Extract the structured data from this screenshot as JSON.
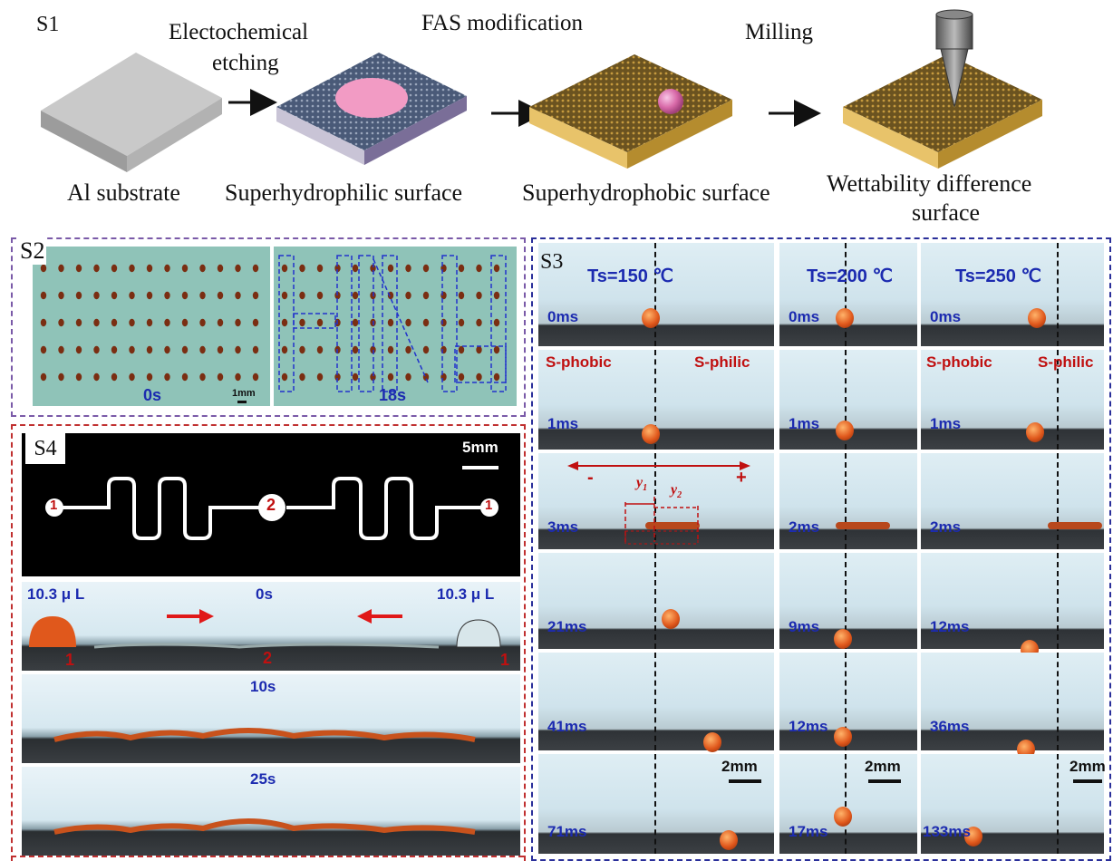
{
  "s1": {
    "tag": "S1",
    "step_electrochem_1": "Electochemical",
    "step_electrochem_2": "etching",
    "step_fas": "FAS modification",
    "step_milling": "Milling",
    "surf_al": "Al substrate",
    "surf_philic": "Superhydrophilic surface",
    "surf_phobic": "Superhydrophobic surface",
    "surf_wet_1": "Wettability difference",
    "surf_wet_2": "surface"
  },
  "s2": {
    "tag": "S2",
    "time_left": "0s",
    "time_right": "18s",
    "scale": "1mm"
  },
  "s3": {
    "tag": "S3",
    "columns": [
      {
        "title": "Ts=150 ℃",
        "times": [
          "0ms",
          "1ms",
          "3ms",
          "21ms",
          "41ms",
          "71ms"
        ]
      },
      {
        "title": "Ts=200 ℃",
        "times": [
          "0ms",
          "1ms",
          "2ms",
          "9ms",
          "12ms",
          "17ms"
        ]
      },
      {
        "title": "Ts=250 ℃",
        "times": [
          "0ms",
          "1ms",
          "2ms",
          "12ms",
          "36ms",
          "133ms"
        ]
      }
    ],
    "phobic_label": "S-phobic",
    "philic_label": "S-philic",
    "minus": "-",
    "plus": "+",
    "y1": "y",
    "y1_sub": "1",
    "y2": "y",
    "y2_sub": "2",
    "scale": "2mm"
  },
  "s4": {
    "tag": "S4",
    "scale": "5mm",
    "node_1": "1",
    "node_2": "2",
    "vol_left": "10.3 μ L",
    "vol_right": "10.3 μ L",
    "t0": "0s",
    "t10": "10s",
    "t25": "25s",
    "mark_1": "1",
    "mark_2": "2"
  },
  "colors": {
    "blue_label": "#1c2bb0",
    "red_label": "#c01010",
    "s2_border": "#7a5aa8",
    "s3_border": "#2a2f9a",
    "s4_border": "#c03030"
  }
}
